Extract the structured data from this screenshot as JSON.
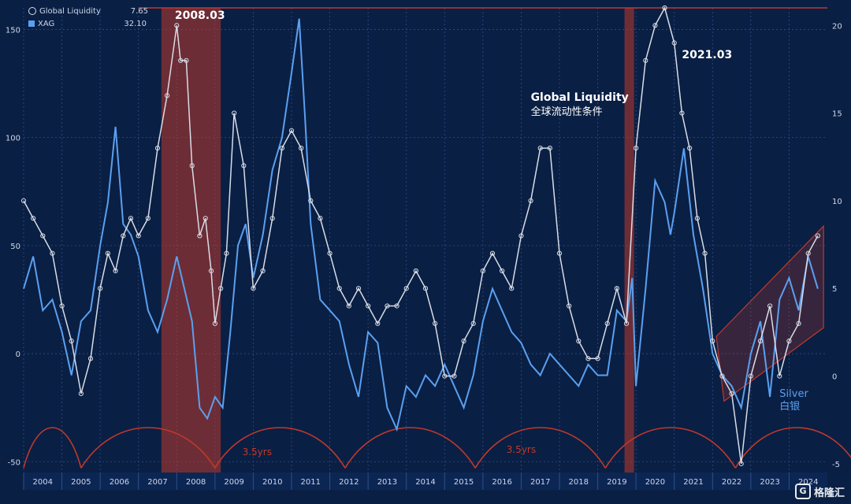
{
  "legend": {
    "items": [
      {
        "name": "Global Liquidity",
        "value": "7.65",
        "color": "#d8dde6"
      },
      {
        "name": "XAG",
        "value": "32.10",
        "color": "#5aa0f0"
      }
    ]
  },
  "annotations": {
    "peak_2008": "2008.03",
    "peak_2021": "2021.03",
    "gl_label_en": "Global Liquidity",
    "gl_label_cn": "全球流动性条件",
    "silver_en": "Silver",
    "silver_cn": "白银",
    "cycle_1": "3.5yrs",
    "cycle_2": "3.5yrs"
  },
  "logo": {
    "text": "格隆汇",
    "mark": "G"
  },
  "colors": {
    "background": "#0a1f44",
    "silver": "#5aa0f0",
    "liquidity": "#d8dde6",
    "highlight": "#c0392b",
    "cycle": "#c0392b",
    "label_annot": "#5aa0f0"
  },
  "chart_data": {
    "type": "line",
    "x_ticks": [
      "2004",
      "2005",
      "2006",
      "2007",
      "2008",
      "2009",
      "2010",
      "2011",
      "2012",
      "2013",
      "2014",
      "2015",
      "2016",
      "2017",
      "2018",
      "2019",
      "2020",
      "2021",
      "2022",
      "2023",
      "2024"
    ],
    "xlim": [
      2004,
      2025
    ],
    "left_axis": {
      "ylim": [
        -55,
        160
      ],
      "ticks": [
        150,
        100,
        50,
        0,
        -50
      ]
    },
    "right_axis": {
      "ylim": [
        -5.5,
        21
      ],
      "ticks": [
        20,
        15,
        10,
        5,
        0,
        -5
      ]
    },
    "reference_line_right": 21,
    "highlight_periods": [
      [
        2007.6,
        2009.15
      ],
      [
        2019.7,
        2019.95
      ]
    ],
    "cycles": [
      [
        2004,
        2005.5
      ],
      [
        2005.5,
        2009.0
      ],
      [
        2009.0,
        2012.4
      ],
      [
        2012.4,
        2015.8
      ],
      [
        2015.8,
        2019.2
      ],
      [
        2019.2,
        2022.6
      ],
      [
        2022.6,
        2025.8
      ]
    ],
    "series": [
      {
        "name": "XAG",
        "axis": "left",
        "x": [
          2004.0,
          2004.25,
          2004.5,
          2004.75,
          2005.0,
          2005.25,
          2005.5,
          2005.75,
          2006.0,
          2006.2,
          2006.4,
          2006.6,
          2006.8,
          2007.0,
          2007.25,
          2007.5,
          2007.75,
          2008.0,
          2008.2,
          2008.4,
          2008.6,
          2008.8,
          2009.0,
          2009.2,
          2009.4,
          2009.6,
          2009.8,
          2010.0,
          2010.25,
          2010.5,
          2010.75,
          2011.0,
          2011.2,
          2011.35,
          2011.5,
          2011.75,
          2012.0,
          2012.25,
          2012.5,
          2012.75,
          2013.0,
          2013.25,
          2013.5,
          2013.75,
          2014.0,
          2014.25,
          2014.5,
          2014.75,
          2015.0,
          2015.25,
          2015.5,
          2015.75,
          2016.0,
          2016.25,
          2016.5,
          2016.75,
          2017.0,
          2017.25,
          2017.5,
          2017.75,
          2018.0,
          2018.25,
          2018.5,
          2018.75,
          2019.0,
          2019.25,
          2019.5,
          2019.75,
          2019.9,
          2020.0,
          2020.25,
          2020.5,
          2020.75,
          2020.9,
          2021.0,
          2021.25,
          2021.5,
          2021.75,
          2022.0,
          2022.25,
          2022.5,
          2022.75,
          2023.0,
          2023.25,
          2023.5,
          2023.75,
          2024.0,
          2024.25,
          2024.5,
          2024.75
        ],
        "values": [
          30,
          45,
          20,
          25,
          10,
          -10,
          15,
          20,
          50,
          70,
          105,
          60,
          55,
          45,
          20,
          10,
          25,
          45,
          30,
          15,
          -25,
          -30,
          -20,
          -25,
          10,
          50,
          60,
          35,
          55,
          85,
          100,
          130,
          155,
          110,
          60,
          25,
          20,
          15,
          -5,
          -20,
          10,
          5,
          -25,
          -35,
          -15,
          -20,
          -10,
          -15,
          -5,
          -15,
          -25,
          -10,
          15,
          30,
          20,
          10,
          5,
          -5,
          -10,
          0,
          -5,
          -10,
          -15,
          -5,
          -10,
          -10,
          20,
          15,
          35,
          -15,
          30,
          80,
          70,
          55,
          65,
          95,
          55,
          30,
          0,
          -10,
          -15,
          -25,
          0,
          15,
          -20,
          25,
          35,
          20,
          45,
          30
        ]
      },
      {
        "name": "Global Liquidity",
        "axis": "right",
        "x": [
          2004.0,
          2004.25,
          2004.5,
          2004.75,
          2005.0,
          2005.25,
          2005.5,
          2005.75,
          2006.0,
          2006.2,
          2006.4,
          2006.6,
          2006.8,
          2007.0,
          2007.25,
          2007.5,
          2007.75,
          2008.0,
          2008.1,
          2008.25,
          2008.4,
          2008.6,
          2008.75,
          2008.9,
          2009.0,
          2009.15,
          2009.3,
          2009.5,
          2009.75,
          2010.0,
          2010.25,
          2010.5,
          2010.75,
          2011.0,
          2011.25,
          2011.5,
          2011.75,
          2012.0,
          2012.25,
          2012.5,
          2012.75,
          2013.0,
          2013.25,
          2013.5,
          2013.75,
          2014.0,
          2014.25,
          2014.5,
          2014.75,
          2015.0,
          2015.25,
          2015.5,
          2015.75,
          2016.0,
          2016.25,
          2016.5,
          2016.75,
          2017.0,
          2017.25,
          2017.5,
          2017.75,
          2018.0,
          2018.25,
          2018.5,
          2018.75,
          2019.0,
          2019.25,
          2019.5,
          2019.75,
          2020.0,
          2020.25,
          2020.5,
          2020.75,
          2021.0,
          2021.2,
          2021.4,
          2021.6,
          2021.8,
          2022.0,
          2022.25,
          2022.5,
          2022.75,
          2023.0,
          2023.25,
          2023.5,
          2023.75,
          2024.0,
          2024.25,
          2024.5,
          2024.75
        ],
        "values": [
          10,
          9,
          8,
          7,
          4,
          2,
          -1,
          1,
          5,
          7,
          6,
          8,
          9,
          8,
          9,
          13,
          16,
          20,
          18,
          18,
          12,
          8,
          9,
          6,
          3,
          5,
          7,
          15,
          12,
          5,
          6,
          9,
          13,
          14,
          13,
          10,
          9,
          7,
          5,
          4,
          5,
          4,
          3,
          4,
          4,
          5,
          6,
          5,
          3,
          0,
          0,
          2,
          3,
          6,
          7,
          6,
          5,
          8,
          10,
          13,
          13,
          7,
          4,
          2,
          1,
          1,
          3,
          5,
          3,
          13,
          18,
          20,
          21,
          19,
          15,
          13,
          9,
          7,
          2,
          0,
          -1,
          -5,
          0,
          2,
          4,
          0,
          2,
          3,
          7,
          8
        ]
      }
    ]
  }
}
